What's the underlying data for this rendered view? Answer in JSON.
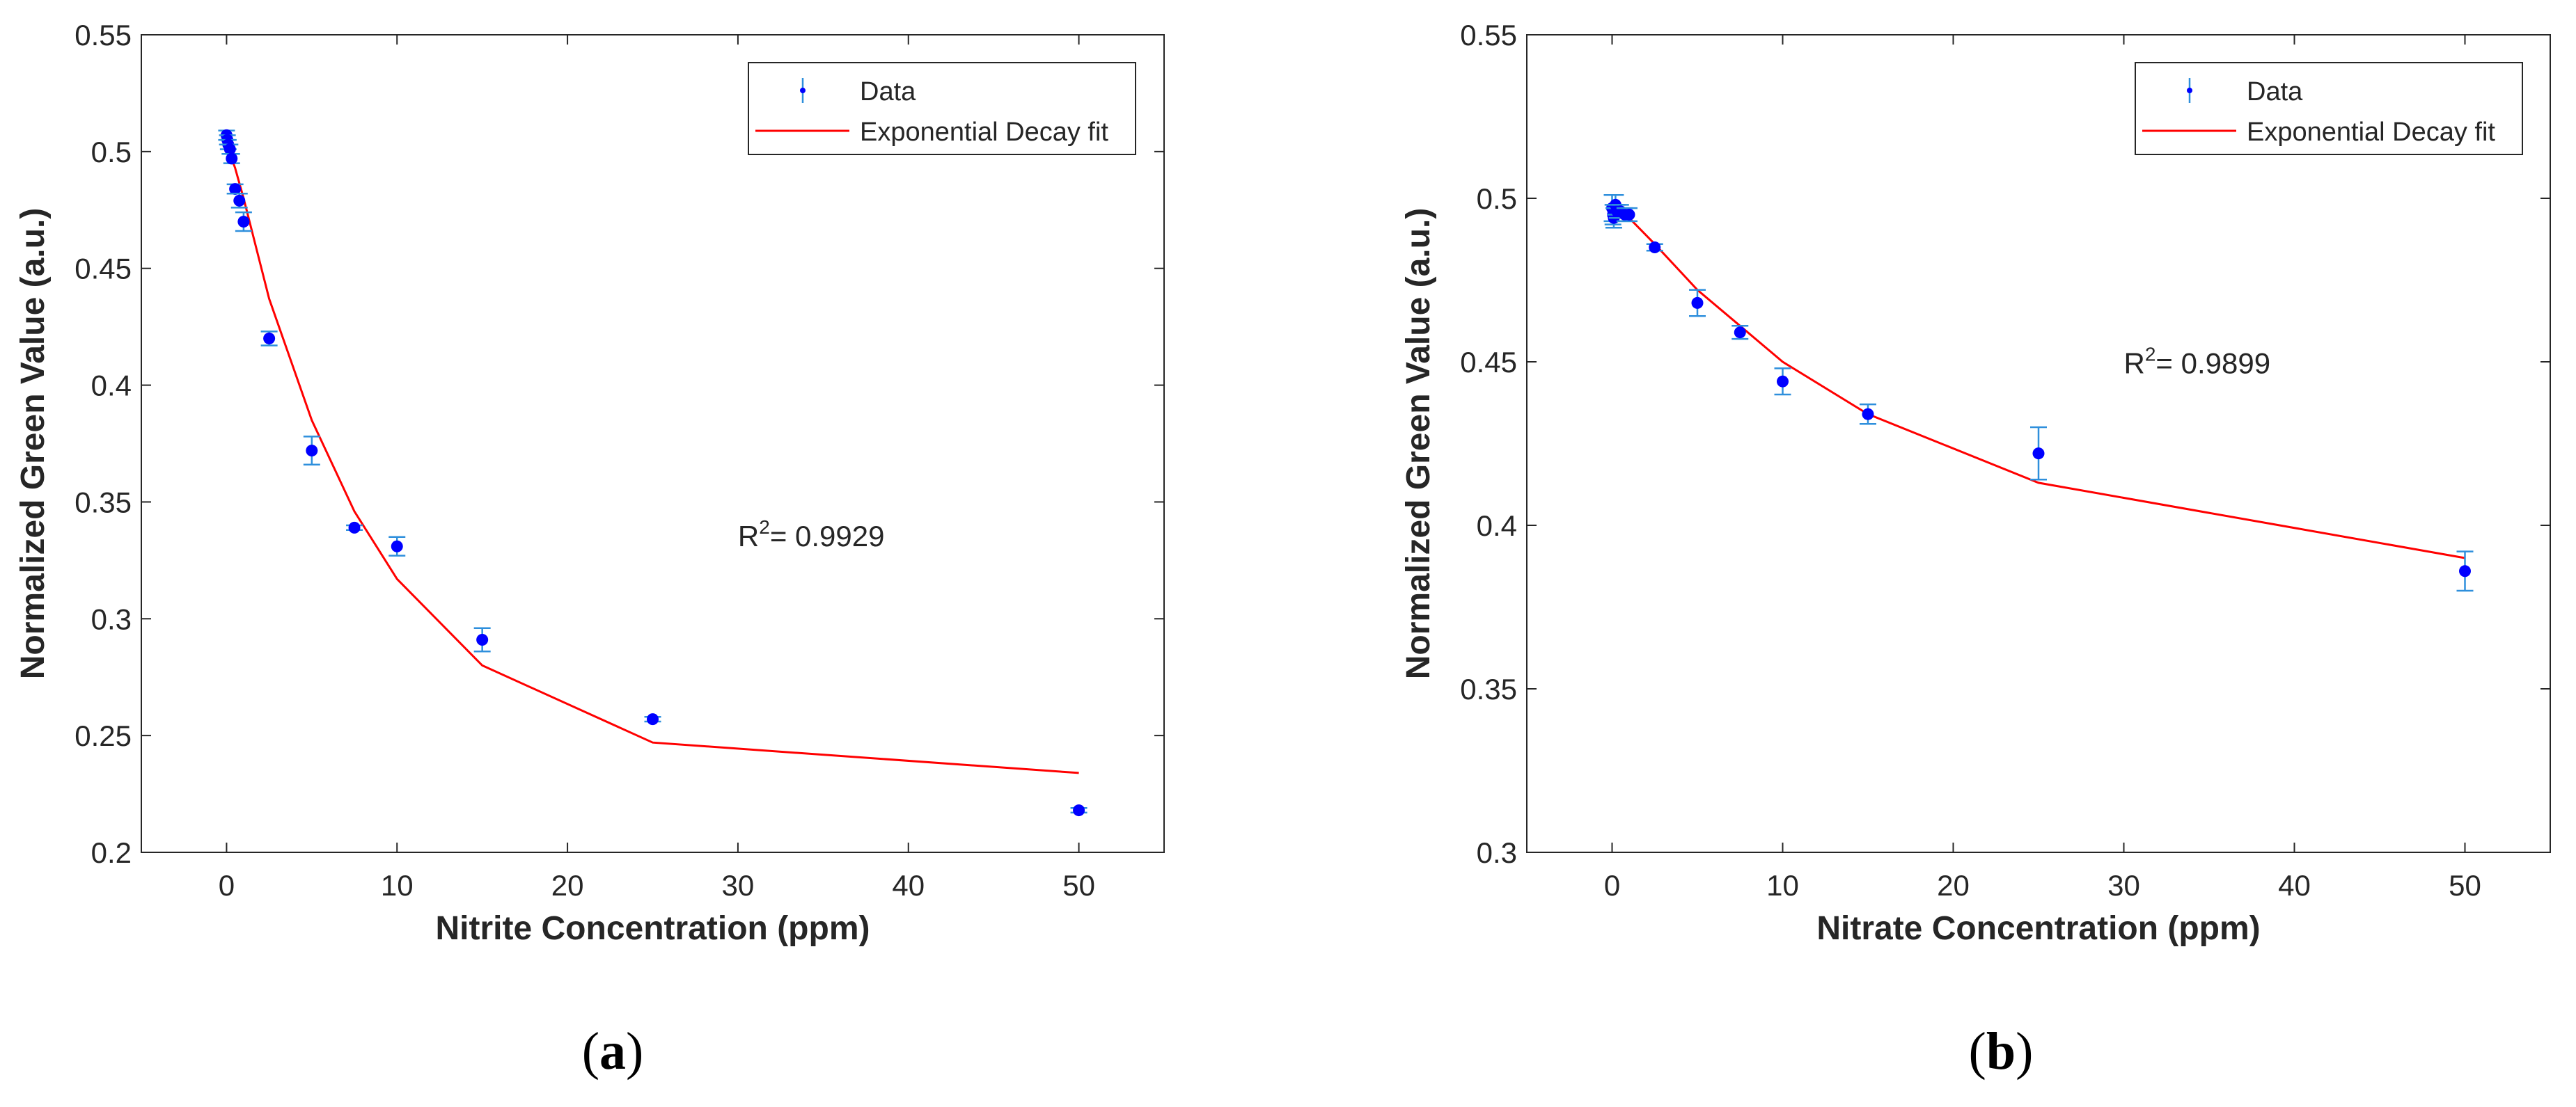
{
  "figure": {
    "legend_data_label": "Data",
    "legend_fit_label": "Exponential Decay fit",
    "colors": {
      "data": "#0000ff",
      "error_bar": "#2e8fdc",
      "fit": "#ff0000",
      "axis": "#262626",
      "text": "#262626"
    }
  },
  "chart_data": [
    {
      "type": "scatter",
      "panel_label_prefix": "(",
      "panel_label": "a",
      "panel_label_suffix": ")",
      "xlabel": "Nitrite Concentration (ppm)",
      "ylabel": "Normalized Green Value (a.u.)",
      "xlim": [
        -5,
        55
      ],
      "ylim": [
        0.2,
        0.55
      ],
      "xticks": [
        0,
        10,
        20,
        30,
        40,
        50
      ],
      "yticks": [
        0.2,
        0.25,
        0.3,
        0.35,
        0.4,
        0.45,
        0.5,
        0.55
      ],
      "xtick_labels": [
        "0",
        "10",
        "20",
        "30",
        "40",
        "50"
      ],
      "ytick_labels": [
        "0.2",
        "0.25",
        "0.3",
        "0.35",
        "0.4",
        "0.45",
        "0.5",
        "0.55"
      ],
      "legend": {
        "position": "top-right",
        "entries": [
          "Data",
          "Exponential Decay fit"
        ]
      },
      "annotation": {
        "text_prefix": "R",
        "superscript": "2",
        "text_suffix": "= 0.9929",
        "x": 30,
        "y": 0.331
      },
      "series": [
        {
          "name": "Data",
          "points": [
            {
              "x": 0.0,
              "y": 0.507,
              "err": 0.002
            },
            {
              "x": 0.05,
              "y": 0.505,
              "err": 0.002
            },
            {
              "x": 0.1,
              "y": 0.503,
              "err": 0.002
            },
            {
              "x": 0.2,
              "y": 0.501,
              "err": 0.002
            },
            {
              "x": 0.3,
              "y": 0.497,
              "err": 0.002
            },
            {
              "x": 0.5,
              "y": 0.484,
              "err": 0.002
            },
            {
              "x": 0.75,
              "y": 0.479,
              "err": 0.003
            },
            {
              "x": 1.0,
              "y": 0.47,
              "err": 0.004
            },
            {
              "x": 2.5,
              "y": 0.42,
              "err": 0.003
            },
            {
              "x": 5.0,
              "y": 0.372,
              "err": 0.006
            },
            {
              "x": 7.5,
              "y": 0.339,
              "err": 0.001
            },
            {
              "x": 10.0,
              "y": 0.331,
              "err": 0.004
            },
            {
              "x": 15.0,
              "y": 0.291,
              "err": 0.005
            },
            {
              "x": 25.0,
              "y": 0.257,
              "err": 0.001
            },
            {
              "x": 50.0,
              "y": 0.218,
              "err": 0.001
            }
          ]
        },
        {
          "name": "Exponential Decay fit",
          "points": [
            {
              "x": 0,
              "y": 0.503
            },
            {
              "x": 0.5,
              "y": 0.493
            },
            {
              "x": 1,
              "y": 0.48
            },
            {
              "x": 2.5,
              "y": 0.437
            },
            {
              "x": 5,
              "y": 0.385
            },
            {
              "x": 7.5,
              "y": 0.346
            },
            {
              "x": 10,
              "y": 0.317
            },
            {
              "x": 15,
              "y": 0.28
            },
            {
              "x": 25,
              "y": 0.247
            },
            {
              "x": 50,
              "y": 0.234
            }
          ]
        }
      ]
    },
    {
      "type": "scatter",
      "panel_label_prefix": "(",
      "panel_label": "b",
      "panel_label_suffix": ")",
      "xlabel": "Nitrate Concentration (ppm)",
      "ylabel": "Normalized Green Value (a.u.)",
      "xlim": [
        -5,
        55
      ],
      "ylim": [
        0.3,
        0.55
      ],
      "xticks": [
        0,
        10,
        20,
        30,
        40,
        50
      ],
      "yticks": [
        0.3,
        0.35,
        0.4,
        0.45,
        0.5,
        0.55
      ],
      "xtick_labels": [
        "0",
        "10",
        "20",
        "30",
        "40",
        "50"
      ],
      "ytick_labels": [
        "0.3",
        "0.35",
        "0.4",
        "0.45",
        "0.5",
        "0.55"
      ],
      "legend": {
        "position": "top-right",
        "entries": [
          "Data",
          "Exponential Decay fit"
        ]
      },
      "annotation": {
        "text_prefix": "R",
        "superscript": "2",
        "text_suffix": "= 0.9899",
        "x": 30,
        "y": 0.4465
      },
      "series": [
        {
          "name": "Data",
          "points": [
            {
              "x": 0.0,
              "y": 0.497,
              "err": 0.004
            },
            {
              "x": 0.05,
              "y": 0.495,
              "err": 0.003
            },
            {
              "x": 0.1,
              "y": 0.494,
              "err": 0.003
            },
            {
              "x": 0.2,
              "y": 0.498,
              "err": 0.003
            },
            {
              "x": 0.3,
              "y": 0.496,
              "err": 0.002
            },
            {
              "x": 0.5,
              "y": 0.496,
              "err": 0.002
            },
            {
              "x": 0.75,
              "y": 0.495,
              "err": 0.002
            },
            {
              "x": 1.0,
              "y": 0.495,
              "err": 0.002
            },
            {
              "x": 2.5,
              "y": 0.485,
              "err": 0.001
            },
            {
              "x": 5.0,
              "y": 0.468,
              "err": 0.004
            },
            {
              "x": 7.5,
              "y": 0.459,
              "err": 0.002
            },
            {
              "x": 10.0,
              "y": 0.444,
              "err": 0.004
            },
            {
              "x": 15.0,
              "y": 0.434,
              "err": 0.003
            },
            {
              "x": 25.0,
              "y": 0.422,
              "err": 0.008
            },
            {
              "x": 50.0,
              "y": 0.386,
              "err": 0.006
            }
          ]
        },
        {
          "name": "Exponential Decay fit",
          "points": [
            {
              "x": 0,
              "y": 0.497
            },
            {
              "x": 0.5,
              "y": 0.496
            },
            {
              "x": 1,
              "y": 0.494
            },
            {
              "x": 2.5,
              "y": 0.486
            },
            {
              "x": 5,
              "y": 0.472
            },
            {
              "x": 7.5,
              "y": 0.461
            },
            {
              "x": 10,
              "y": 0.45
            },
            {
              "x": 15,
              "y": 0.434
            },
            {
              "x": 25,
              "y": 0.413
            },
            {
              "x": 50,
              "y": 0.39
            }
          ]
        }
      ]
    }
  ]
}
